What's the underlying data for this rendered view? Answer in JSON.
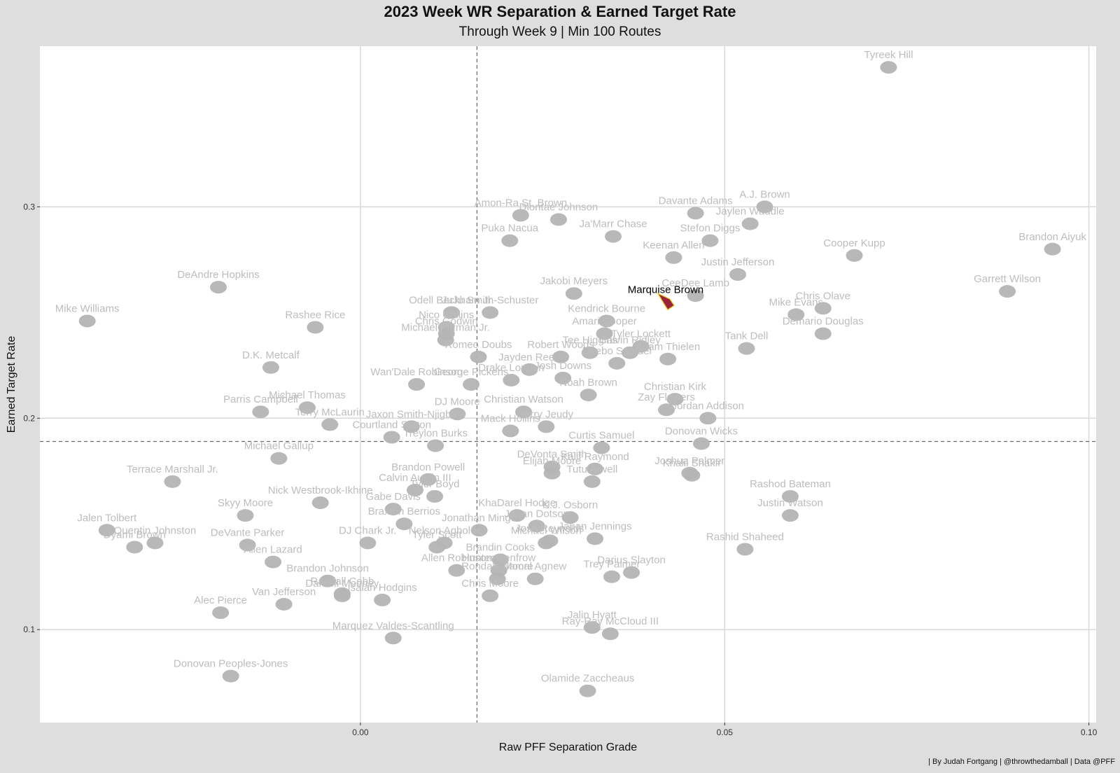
{
  "chart_data": {
    "type": "scatter",
    "title": "2023 Week WR Separation & Earned Target Rate",
    "subtitle": "Through Week 9 | Min 100 Routes",
    "caption": "| By Judah Fortgang | @throwthedamball | Data @PFF",
    "xlabel": "Raw PFF Separation Grade",
    "ylabel": "Earned Target Rate",
    "xlim": [
      -0.044,
      0.101
    ],
    "ylim": [
      0.056,
      0.376
    ],
    "xticks": [
      0.0,
      0.05,
      0.1
    ],
    "xtick_labels": [
      "0.00",
      "0.05",
      "0.10"
    ],
    "yticks": [
      0.1,
      0.2,
      0.3
    ],
    "ytick_labels": [
      "0.1",
      "0.2",
      "0.3"
    ],
    "reference_lines": {
      "x": 0.016,
      "y": 0.189
    },
    "grid": true,
    "highlight": "Marquise Brown",
    "colors": {
      "background": "#dedede",
      "panel": "#ffffff",
      "grid": "#d9d9d9",
      "marker": "#b4b4b4",
      "label": "#bdbdbd",
      "highlight_label": "#000000",
      "highlight_marker": "#97233f"
    },
    "points": [
      {
        "name": "Tyreek Hill",
        "x": 0.0725,
        "y": 0.366
      },
      {
        "name": "A.J. Brown",
        "x": 0.0555,
        "y": 0.3
      },
      {
        "name": "Davante Adams",
        "x": 0.046,
        "y": 0.297
      },
      {
        "name": "Amon-Ra St. Brown",
        "x": 0.022,
        "y": 0.296
      },
      {
        "name": "Jaylen Waddle",
        "x": 0.0535,
        "y": 0.292
      },
      {
        "name": "Diontae Johnson",
        "x": 0.0272,
        "y": 0.294
      },
      {
        "name": "Ja'Marr Chase",
        "x": 0.0347,
        "y": 0.286
      },
      {
        "name": "Stefon Diggs",
        "x": 0.048,
        "y": 0.284
      },
      {
        "name": "Puka Nacua",
        "x": 0.0205,
        "y": 0.284
      },
      {
        "name": "Cooper Kupp",
        "x": 0.0678,
        "y": 0.277
      },
      {
        "name": "Brandon Aiyuk",
        "x": 0.095,
        "y": 0.28
      },
      {
        "name": "Keenan Allen",
        "x": 0.043,
        "y": 0.276
      },
      {
        "name": "Justin Jefferson",
        "x": 0.0518,
        "y": 0.268
      },
      {
        "name": "Jakobi Meyers",
        "x": 0.0293,
        "y": 0.259
      },
      {
        "name": "CeeDee Lamb",
        "x": 0.046,
        "y": 0.258
      },
      {
        "name": "Garrett Wilson",
        "x": 0.0888,
        "y": 0.26
      },
      {
        "name": "Chris Olave",
        "x": 0.0635,
        "y": 0.252
      },
      {
        "name": "Marquise Brown",
        "x": 0.0419,
        "y": 0.255
      },
      {
        "name": "Mike Williams",
        "x": -0.0375,
        "y": 0.246
      },
      {
        "name": "DeAndre Hopkins",
        "x": -0.0195,
        "y": 0.262
      },
      {
        "name": "JuJu Smith-Schuster",
        "x": 0.0178,
        "y": 0.25
      },
      {
        "name": "Odell Beckham Jr.",
        "x": 0.0125,
        "y": 0.25
      },
      {
        "name": "Nico Collins",
        "x": 0.0118,
        "y": 0.243
      },
      {
        "name": "Michael Pittman Jr.",
        "x": 0.0117,
        "y": 0.237
      },
      {
        "name": "Kendrick Bourne",
        "x": 0.0338,
        "y": 0.246
      },
      {
        "name": "Mike Evans",
        "x": 0.0598,
        "y": 0.249
      },
      {
        "name": "Rashee Rice",
        "x": -0.0062,
        "y": 0.243
      },
      {
        "name": "Amari Cooper",
        "x": 0.0335,
        "y": 0.24
      },
      {
        "name": "Chris Godwin",
        "x": 0.0118,
        "y": 0.24
      },
      {
        "name": "Demario Douglas",
        "x": 0.0635,
        "y": 0.24
      },
      {
        "name": "Tyler Lockett",
        "x": 0.0385,
        "y": 0.234
      },
      {
        "name": "Calvin Ridley",
        "x": 0.037,
        "y": 0.231
      },
      {
        "name": "Tee Higgins",
        "x": 0.0315,
        "y": 0.231
      },
      {
        "name": "Tank Dell",
        "x": 0.053,
        "y": 0.233
      },
      {
        "name": "Romeo Doubs",
        "x": 0.0162,
        "y": 0.229
      },
      {
        "name": "Robert Woods",
        "x": 0.0275,
        "y": 0.229
      },
      {
        "name": "Deebo Samuel",
        "x": 0.0352,
        "y": 0.226
      },
      {
        "name": "D.K. Metcalf",
        "x": -0.0123,
        "y": 0.224
      },
      {
        "name": "Jayden Reed",
        "x": 0.0232,
        "y": 0.223
      },
      {
        "name": "Adam Thielen",
        "x": 0.0422,
        "y": 0.228
      },
      {
        "name": "Drake London",
        "x": 0.0207,
        "y": 0.218
      },
      {
        "name": "Josh Downs",
        "x": 0.0278,
        "y": 0.219
      },
      {
        "name": "Wan'Dale Robinson",
        "x": 0.0077,
        "y": 0.216
      },
      {
        "name": "George Pickens",
        "x": 0.0152,
        "y": 0.216
      },
      {
        "name": "Christian Kirk",
        "x": 0.0432,
        "y": 0.209
      },
      {
        "name": "Michael Thomas",
        "x": -0.0073,
        "y": 0.205
      },
      {
        "name": "Noah Brown",
        "x": 0.0313,
        "y": 0.211
      },
      {
        "name": "DJ Moore",
        "x": 0.0133,
        "y": 0.202
      },
      {
        "name": "Parris Campbell",
        "x": -0.0137,
        "y": 0.203
      },
      {
        "name": "Christian Watson",
        "x": 0.0224,
        "y": 0.203
      },
      {
        "name": "Zay Flowers",
        "x": 0.042,
        "y": 0.204
      },
      {
        "name": "Jordan Addison",
        "x": 0.0477,
        "y": 0.2
      },
      {
        "name": "Jaxon Smith-Njigba",
        "x": 0.007,
        "y": 0.196
      },
      {
        "name": "Terry McLaurin",
        "x": -0.0042,
        "y": 0.197
      },
      {
        "name": "Jerry Jeudy",
        "x": 0.0255,
        "y": 0.196
      },
      {
        "name": "Mack Hollins",
        "x": 0.0206,
        "y": 0.194
      },
      {
        "name": "Curtis Samuel",
        "x": 0.0331,
        "y": 0.186
      },
      {
        "name": "Donovan Wicks",
        "x": 0.0468,
        "y": 0.188
      },
      {
        "name": "Courtland Sutton",
        "x": 0.0043,
        "y": 0.191
      },
      {
        "name": "Treylon Burks",
        "x": 0.0103,
        "y": 0.187
      },
      {
        "name": "Michael Gallup",
        "x": -0.0112,
        "y": 0.181
      },
      {
        "name": "DeVonta Smith",
        "x": 0.0263,
        "y": 0.177
      },
      {
        "name": "Kalif Raymond",
        "x": 0.0322,
        "y": 0.176
      },
      {
        "name": "Joshua Palmer",
        "x": 0.0452,
        "y": 0.174
      },
      {
        "name": "Brandon Powell",
        "x": 0.0093,
        "y": 0.171
      },
      {
        "name": "Elijah Moore",
        "x": 0.0263,
        "y": 0.174
      },
      {
        "name": "Tutu Atwell",
        "x": 0.0318,
        "y": 0.17
      },
      {
        "name": "Khalil Shakir",
        "x": 0.0455,
        "y": 0.173
      },
      {
        "name": "Terrace Marshall Jr.",
        "x": -0.0258,
        "y": 0.17
      },
      {
        "name": "Calvin Austin III",
        "x": 0.0075,
        "y": 0.166
      },
      {
        "name": "Tyler Boyd",
        "x": 0.0102,
        "y": 0.163
      },
      {
        "name": "Rashod Bateman",
        "x": 0.059,
        "y": 0.163
      },
      {
        "name": "Gabe Davis",
        "x": 0.0045,
        "y": 0.157
      },
      {
        "name": "KhaDarel Hodge",
        "x": 0.0215,
        "y": 0.154
      },
      {
        "name": "Nick Westbrook-Ikhine",
        "x": -0.0055,
        "y": 0.16
      },
      {
        "name": "K.J. Osborn",
        "x": 0.0288,
        "y": 0.153
      },
      {
        "name": "Braxton Berrios",
        "x": 0.006,
        "y": 0.15
      },
      {
        "name": "Jonathan Mingo",
        "x": 0.0163,
        "y": 0.147
      },
      {
        "name": "Jahan Dotson",
        "x": 0.0242,
        "y": 0.149
      },
      {
        "name": "Justin Watson",
        "x": 0.059,
        "y": 0.154
      },
      {
        "name": "Skyy Moore",
        "x": -0.0158,
        "y": 0.154
      },
      {
        "name": "Jalen Tolbert",
        "x": -0.0348,
        "y": 0.147
      },
      {
        "name": "Quentin Johnston",
        "x": -0.0282,
        "y": 0.141
      },
      {
        "name": "DeVante Parker",
        "x": -0.0155,
        "y": 0.14
      },
      {
        "name": "DJ Chark Jr.",
        "x": 0.001,
        "y": 0.141
      },
      {
        "name": "Nelson Agholor",
        "x": 0.0115,
        "y": 0.141
      },
      {
        "name": "Jauan Jennings",
        "x": 0.0322,
        "y": 0.143
      },
      {
        "name": "Josh Reynolds",
        "x": 0.026,
        "y": 0.142
      },
      {
        "name": "Michael Wilson",
        "x": 0.0255,
        "y": 0.141
      },
      {
        "name": "Dyami Brown",
        "x": -0.031,
        "y": 0.139
      },
      {
        "name": "Rashid Shaheed",
        "x": 0.0528,
        "y": 0.138
      },
      {
        "name": "Tyler Scott",
        "x": 0.0105,
        "y": 0.139
      },
      {
        "name": "Brandin Cooks",
        "x": 0.0192,
        "y": 0.133
      },
      {
        "name": "Allen Lazard",
        "x": -0.012,
        "y": 0.132
      },
      {
        "name": "Darius Slayton",
        "x": 0.0372,
        "y": 0.127
      },
      {
        "name": "Hunter Renfrow",
        "x": 0.019,
        "y": 0.128
      },
      {
        "name": "Allen Robinson",
        "x": 0.0132,
        "y": 0.128
      },
      {
        "name": "Brandon Johnson",
        "x": -0.0045,
        "y": 0.123
      },
      {
        "name": "Rondale Moore",
        "x": 0.0188,
        "y": 0.124
      },
      {
        "name": "Jamal Agnew",
        "x": 0.024,
        "y": 0.124
      },
      {
        "name": "Trey Palmer",
        "x": 0.0345,
        "y": 0.125
      },
      {
        "name": "Randall Cobb",
        "x": -0.0025,
        "y": 0.117
      },
      {
        "name": "Chris Moore",
        "x": 0.0178,
        "y": 0.116
      },
      {
        "name": "Van Jefferson",
        "x": -0.0105,
        "y": 0.112
      },
      {
        "name": "Isaiah Hodgins",
        "x": 0.003,
        "y": 0.114
      },
      {
        "name": "Darnell Mooney",
        "x": -0.0025,
        "y": 0.116
      },
      {
        "name": "Alec Pierce",
        "x": -0.0192,
        "y": 0.108
      },
      {
        "name": "Jalin Hyatt",
        "x": 0.0318,
        "y": 0.101
      },
      {
        "name": "Ray-Ray McCloud III",
        "x": 0.0343,
        "y": 0.098
      },
      {
        "name": "Marquez Valdes-Scantling",
        "x": 0.0045,
        "y": 0.096
      },
      {
        "name": "Donovan Peoples-Jones",
        "x": -0.0178,
        "y": 0.078
      },
      {
        "name": "Olamide Zaccheaus",
        "x": 0.0312,
        "y": 0.071
      }
    ]
  }
}
